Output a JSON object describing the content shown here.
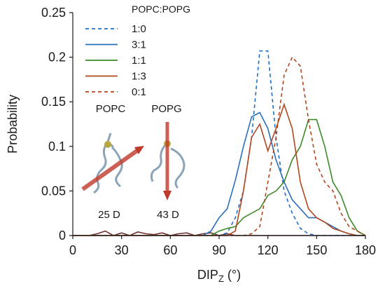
{
  "chart_data": {
    "type": "line",
    "xlabel_main": "DIP",
    "xlabel_sub": "Z",
    "xlabel_unit": " (°)",
    "ylabel": "Probability",
    "xlim": [
      0,
      180
    ],
    "ylim": [
      0,
      0.25
    ],
    "x_ticks": [
      "0",
      "30",
      "60",
      "90",
      "120",
      "150",
      "180"
    ],
    "y_ticks": [
      "0",
      "0.05",
      "0.1",
      "0.15",
      "0.2",
      "0.25"
    ],
    "grid": false,
    "legend_placement": "top-left",
    "legend_title": "POPC:POPG",
    "x": [
      0,
      5,
      10,
      15,
      20,
      25,
      30,
      35,
      40,
      45,
      50,
      55,
      60,
      65,
      70,
      75,
      80,
      85,
      90,
      95,
      100,
      105,
      110,
      115,
      120,
      125,
      130,
      135,
      140,
      145,
      150,
      155,
      160,
      165,
      170,
      175,
      180
    ],
    "series": [
      {
        "name": "1:0",
        "color": "#1f6fc9",
        "dash": "dashed",
        "values": [
          0,
          0,
          0,
          0,
          0,
          0,
          0,
          0,
          0,
          0,
          0,
          0,
          0,
          0,
          0,
          0,
          0,
          0,
          0,
          0.003,
          0.02,
          0.05,
          0.11,
          0.207,
          0.207,
          0.11,
          0.05,
          0.025,
          0.008,
          0.002,
          0,
          0,
          0,
          0,
          0,
          0,
          0
        ]
      },
      {
        "name": "3:1",
        "color": "#2a6ebd",
        "dash": "solid",
        "values": [
          0,
          0,
          0,
          0,
          0,
          0,
          0,
          0,
          0,
          0,
          0,
          0,
          0,
          0,
          0,
          0,
          0,
          0.005,
          0.02,
          0.03,
          0.062,
          0.1,
          0.133,
          0.138,
          0.12,
          0.085,
          0.06,
          0.04,
          0.03,
          0.02,
          0.02,
          0.015,
          0.01,
          0.005,
          0.002,
          0,
          0
        ]
      },
      {
        "name": "1:1",
        "color": "#3d8a2a",
        "dash": "solid",
        "values": [
          0,
          0,
          0,
          0,
          0,
          0,
          0,
          0,
          0,
          0,
          0,
          0,
          0,
          0,
          0,
          0,
          0,
          0,
          0.005,
          0.008,
          0.01,
          0.02,
          0.025,
          0.03,
          0.045,
          0.05,
          0.06,
          0.085,
          0.1,
          0.13,
          0.13,
          0.1,
          0.06,
          0.045,
          0.02,
          0.005,
          0
        ]
      },
      {
        "name": "1:3",
        "color": "#b0461e",
        "dash": "solid",
        "values": [
          0,
          0,
          0,
          0,
          0,
          0,
          0,
          0,
          0,
          0,
          0,
          0,
          0,
          0,
          0,
          0,
          0,
          0,
          0,
          0,
          0.005,
          0.05,
          0.11,
          0.125,
          0.095,
          0.12,
          0.147,
          0.12,
          0.06,
          0.03,
          0.02,
          0.015,
          0.008,
          0.005,
          0.002,
          0,
          0
        ]
      },
      {
        "name": "0:1",
        "color": "#b0461e",
        "dash": "dashed",
        "values": [
          0,
          0,
          0,
          0,
          0,
          0,
          0,
          0,
          0,
          0,
          0,
          0,
          0,
          0,
          0,
          0,
          0,
          0,
          0,
          0,
          0,
          0,
          0.002,
          0.01,
          0.06,
          0.11,
          0.18,
          0.2,
          0.19,
          0.13,
          0.08,
          0.06,
          0.05,
          0.025,
          0.01,
          0.005,
          0
        ]
      },
      {
        "name": "",
        "color": "#6b2f2f",
        "dash": "solid",
        "values": [
          0,
          0,
          0,
          0.002,
          0.005,
          0,
          0.003,
          0,
          0.004,
          0.002,
          0.001,
          0.003,
          0,
          0.002,
          0.003,
          0,
          0.002,
          0.003,
          0,
          0.002,
          0,
          0,
          0,
          0,
          0,
          0,
          0,
          0,
          0,
          0,
          0,
          0,
          0,
          0,
          0,
          0,
          0
        ]
      }
    ],
    "annotations": {
      "popc_label": "POPC",
      "popg_label": "POPG",
      "popc_dipole": "25 D",
      "popg_dipole": "43 D"
    }
  }
}
